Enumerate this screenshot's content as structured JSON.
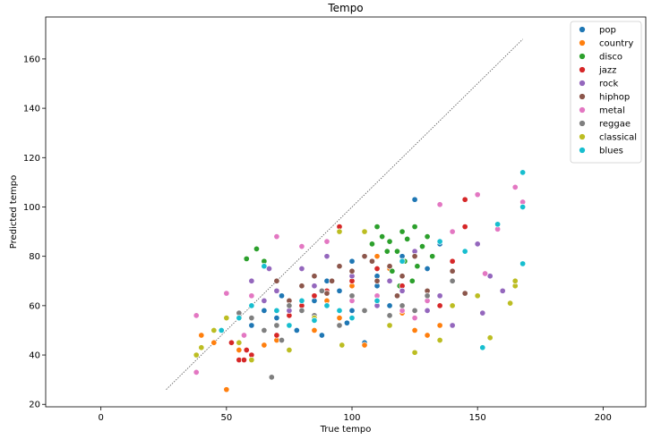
{
  "chart_data": {
    "type": "scatter",
    "title": "Tempo",
    "xlabel": "True tempo",
    "ylabel": "Predicted tempo",
    "xlim": [
      -22,
      217
    ],
    "ylim": [
      19,
      177
    ],
    "xticks": [
      0,
      50,
      100,
      150,
      200
    ],
    "yticks": [
      20,
      40,
      60,
      80,
      100,
      120,
      140,
      160
    ],
    "reference_line": {
      "x": [
        26,
        168
      ],
      "y": [
        26,
        168
      ],
      "style": "dotted"
    },
    "legend_position": "top-right",
    "grid": false,
    "series": [
      {
        "name": "pop",
        "color": "#1f77b4",
        "points": [
          [
            70,
            55
          ],
          [
            85,
            62
          ],
          [
            100,
            58
          ],
          [
            110,
            72
          ],
          [
            120,
            80
          ],
          [
            95,
            66
          ],
          [
            78,
            50
          ],
          [
            125,
            103
          ],
          [
            105,
            45
          ],
          [
            60,
            52
          ],
          [
            90,
            70
          ],
          [
            115,
            60
          ],
          [
            130,
            75
          ],
          [
            100,
            78
          ],
          [
            88,
            48
          ],
          [
            72,
            64
          ],
          [
            135,
            85
          ],
          [
            65,
            58
          ],
          [
            110,
            68
          ],
          [
            98,
            53
          ]
        ]
      },
      {
        "name": "country",
        "color": "#ff7f0e",
        "points": [
          [
            40,
            48
          ],
          [
            45,
            45
          ],
          [
            50,
            26
          ],
          [
            55,
            42
          ],
          [
            60,
            40
          ],
          [
            70,
            46
          ],
          [
            75,
            52
          ],
          [
            80,
            58
          ],
          [
            85,
            50
          ],
          [
            90,
            62
          ],
          [
            95,
            55
          ],
          [
            100,
            68
          ],
          [
            110,
            80
          ],
          [
            115,
            75
          ],
          [
            120,
            57
          ],
          [
            125,
            50
          ],
          [
            130,
            48
          ],
          [
            135,
            52
          ],
          [
            105,
            44
          ],
          [
            65,
            44
          ]
        ]
      },
      {
        "name": "disco",
        "color": "#2ca02c",
        "points": [
          [
            58,
            79
          ],
          [
            62,
            83
          ],
          [
            65,
            78
          ],
          [
            108,
            85
          ],
          [
            112,
            88
          ],
          [
            115,
            86
          ],
          [
            118,
            82
          ],
          [
            120,
            90
          ],
          [
            122,
            87
          ],
          [
            125,
            92
          ],
          [
            128,
            84
          ],
          [
            130,
            88
          ],
          [
            132,
            80
          ],
          [
            126,
            76
          ],
          [
            116,
            74
          ],
          [
            110,
            92
          ],
          [
            119,
            68
          ],
          [
            124,
            70
          ],
          [
            121,
            78
          ],
          [
            114,
            82
          ]
        ]
      },
      {
        "name": "jazz",
        "color": "#d62728",
        "points": [
          [
            52,
            45
          ],
          [
            55,
            38
          ],
          [
            58,
            42
          ],
          [
            60,
            40
          ],
          [
            65,
            50
          ],
          [
            70,
            48
          ],
          [
            75,
            56
          ],
          [
            80,
            60
          ],
          [
            85,
            64
          ],
          [
            90,
            66
          ],
          [
            100,
            70
          ],
          [
            110,
            75
          ],
          [
            120,
            68
          ],
          [
            130,
            62
          ],
          [
            140,
            78
          ],
          [
            145,
            92
          ],
          [
            145,
            103
          ],
          [
            57,
            38
          ],
          [
            135,
            60
          ],
          [
            95,
            92
          ]
        ]
      },
      {
        "name": "rock",
        "color": "#9467bd",
        "points": [
          [
            60,
            70
          ],
          [
            65,
            62
          ],
          [
            70,
            66
          ],
          [
            75,
            58
          ],
          [
            80,
            75
          ],
          [
            90,
            80
          ],
          [
            100,
            72
          ],
          [
            110,
            60
          ],
          [
            120,
            66
          ],
          [
            130,
            58
          ],
          [
            135,
            64
          ],
          [
            140,
            52
          ],
          [
            150,
            85
          ],
          [
            152,
            57
          ],
          [
            155,
            72
          ],
          [
            160,
            66
          ],
          [
            67,
            75
          ],
          [
            85,
            68
          ],
          [
            115,
            70
          ],
          [
            125,
            82
          ]
        ]
      },
      {
        "name": "hiphop",
        "color": "#8c564b",
        "points": [
          [
            60,
            60
          ],
          [
            70,
            70
          ],
          [
            80,
            68
          ],
          [
            85,
            72
          ],
          [
            90,
            65
          ],
          [
            95,
            76
          ],
          [
            100,
            74
          ],
          [
            105,
            80
          ],
          [
            110,
            70
          ],
          [
            115,
            76
          ],
          [
            120,
            72
          ],
          [
            125,
            80
          ],
          [
            130,
            66
          ],
          [
            135,
            86
          ],
          [
            140,
            74
          ],
          [
            145,
            65
          ],
          [
            75,
            62
          ],
          [
            92,
            70
          ],
          [
            108,
            78
          ],
          [
            118,
            64
          ]
        ]
      },
      {
        "name": "metal",
        "color": "#e377c2",
        "points": [
          [
            38,
            56
          ],
          [
            38,
            33
          ],
          [
            50,
            65
          ],
          [
            57,
            48
          ],
          [
            60,
            64
          ],
          [
            70,
            88
          ],
          [
            80,
            84
          ],
          [
            90,
            86
          ],
          [
            100,
            62
          ],
          [
            110,
            64
          ],
          [
            120,
            58
          ],
          [
            130,
            62
          ],
          [
            135,
            101
          ],
          [
            140,
            90
          ],
          [
            150,
            105
          ],
          [
            153,
            73
          ],
          [
            158,
            91
          ],
          [
            165,
            108
          ],
          [
            168,
            102
          ],
          [
            125,
            55
          ]
        ]
      },
      {
        "name": "reggae",
        "color": "#7f7f7f",
        "points": [
          [
            55,
            57
          ],
          [
            60,
            55
          ],
          [
            65,
            50
          ],
          [
            68,
            31
          ],
          [
            70,
            52
          ],
          [
            75,
            60
          ],
          [
            80,
            58
          ],
          [
            85,
            56
          ],
          [
            90,
            60
          ],
          [
            95,
            52
          ],
          [
            100,
            64
          ],
          [
            105,
            58
          ],
          [
            110,
            62
          ],
          [
            115,
            56
          ],
          [
            120,
            60
          ],
          [
            125,
            58
          ],
          [
            130,
            64
          ],
          [
            140,
            70
          ],
          [
            72,
            46
          ],
          [
            88,
            66
          ]
        ]
      },
      {
        "name": "classical",
        "color": "#bcbd22",
        "points": [
          [
            38,
            40
          ],
          [
            40,
            43
          ],
          [
            45,
            50
          ],
          [
            50,
            55
          ],
          [
            55,
            45
          ],
          [
            60,
            38
          ],
          [
            75,
            42
          ],
          [
            85,
            55
          ],
          [
            95,
            90
          ],
          [
            105,
            90
          ],
          [
            115,
            52
          ],
          [
            125,
            41
          ],
          [
            135,
            46
          ],
          [
            140,
            60
          ],
          [
            150,
            64
          ],
          [
            155,
            47
          ],
          [
            163,
            61
          ],
          [
            165,
            68
          ],
          [
            165,
            70
          ],
          [
            96,
            44
          ]
        ]
      },
      {
        "name": "blues",
        "color": "#17becf",
        "points": [
          [
            48,
            50
          ],
          [
            55,
            55
          ],
          [
            60,
            60
          ],
          [
            65,
            76
          ],
          [
            70,
            58
          ],
          [
            75,
            52
          ],
          [
            80,
            62
          ],
          [
            85,
            54
          ],
          [
            90,
            60
          ],
          [
            95,
            58
          ],
          [
            100,
            55
          ],
          [
            110,
            62
          ],
          [
            120,
            78
          ],
          [
            135,
            86
          ],
          [
            145,
            82
          ],
          [
            152,
            43
          ],
          [
            158,
            93
          ],
          [
            168,
            114
          ],
          [
            168,
            100
          ],
          [
            168,
            77
          ]
        ]
      }
    ]
  }
}
